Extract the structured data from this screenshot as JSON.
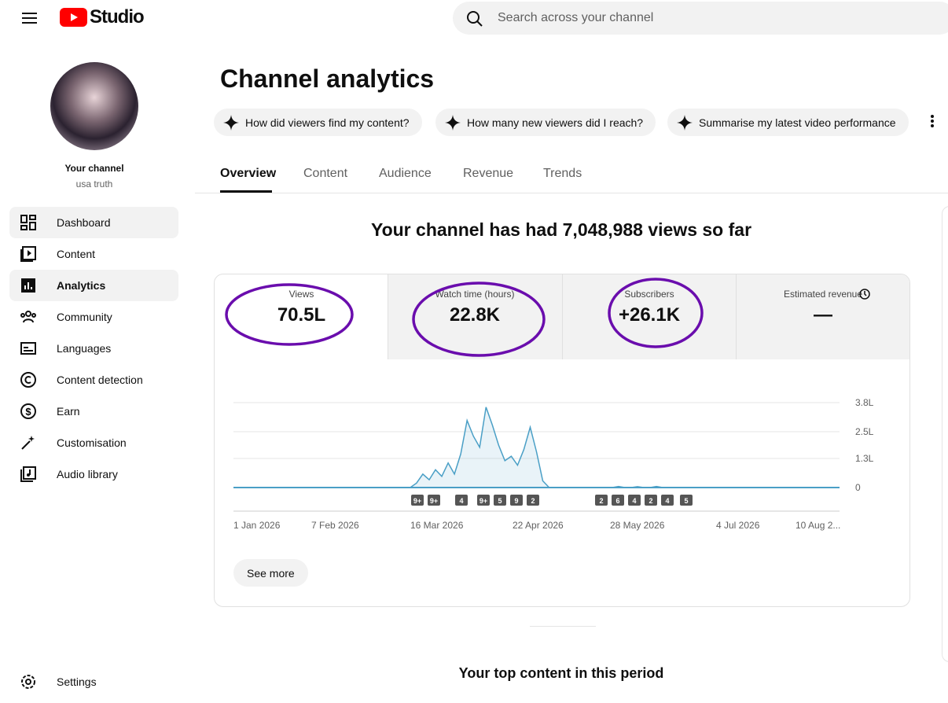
{
  "header": {
    "logo_text": "Studio",
    "search_placeholder": "Search across your channel"
  },
  "sidebar": {
    "channel_label": "Your channel",
    "channel_name": "usa truth",
    "nav": [
      "Dashboard",
      "Content",
      "Analytics",
      "Community",
      "Languages",
      "Content detection",
      "Earn",
      "Customisation",
      "Audio library"
    ],
    "settings": "Settings"
  },
  "main": {
    "title": "Channel analytics",
    "chips": [
      "How did viewers find my content?",
      "How many new viewers did I reach?",
      "Summarise my latest video performance"
    ],
    "tabs": [
      "Overview",
      "Content",
      "Audience",
      "Revenue",
      "Trends"
    ],
    "headline": "Your channel has had 7,048,988 views so far",
    "metrics": [
      {
        "label": "Views",
        "value": "70.5L"
      },
      {
        "label": "Watch time (hours)",
        "value": "22.8K"
      },
      {
        "label": "Subscribers",
        "value": "+26.1K"
      },
      {
        "label": "Estimated revenue",
        "value": "—"
      }
    ],
    "see_more": "See more",
    "top_content_title": "Your top content in this period"
  },
  "analytics_chart": {
    "type": "line",
    "color": "#4a9fc6",
    "ylim": [
      0,
      380000
    ],
    "yticks": [
      0,
      {
        "value": 130000,
        "label": "1.3L"
      },
      {
        "value": 250000,
        "label": "2.5L"
      },
      {
        "value": 380000,
        "label": "3.8L"
      }
    ],
    "grid": true,
    "xtick_labels": [
      "1 Jan 2026",
      "7 Feb 2026",
      "16 Mar 2026",
      "22 Apr 2026",
      "28 May 2026",
      "4 Jul 2026",
      "10 Aug 2..."
    ],
    "values": [
      0,
      0,
      0,
      0,
      0,
      0,
      0,
      0,
      0,
      0,
      0,
      0,
      0,
      0,
      0,
      0,
      0,
      0,
      0,
      0,
      0,
      0,
      0,
      0,
      0,
      0,
      0,
      0,
      0,
      20000,
      60000,
      35000,
      80000,
      50000,
      110000,
      60000,
      150000,
      300000,
      230000,
      180000,
      360000,
      280000,
      190000,
      120000,
      140000,
      100000,
      170000,
      270000,
      160000,
      30000,
      0,
      0,
      0,
      0,
      0,
      0,
      0,
      0,
      0,
      0,
      0,
      5000,
      0,
      0,
      4000,
      0,
      0,
      5000,
      0,
      0,
      0,
      0,
      0,
      0,
      0,
      0,
      0,
      0,
      0,
      0,
      0,
      0,
      0,
      0,
      0,
      0,
      0,
      0,
      0,
      0,
      0,
      0,
      0,
      0,
      0,
      0,
      0
    ],
    "annotations": [
      "9+",
      "9+",
      "4",
      "9+",
      "5",
      "9",
      "2",
      "2",
      "6",
      "4",
      "2",
      "4",
      "5"
    ]
  }
}
